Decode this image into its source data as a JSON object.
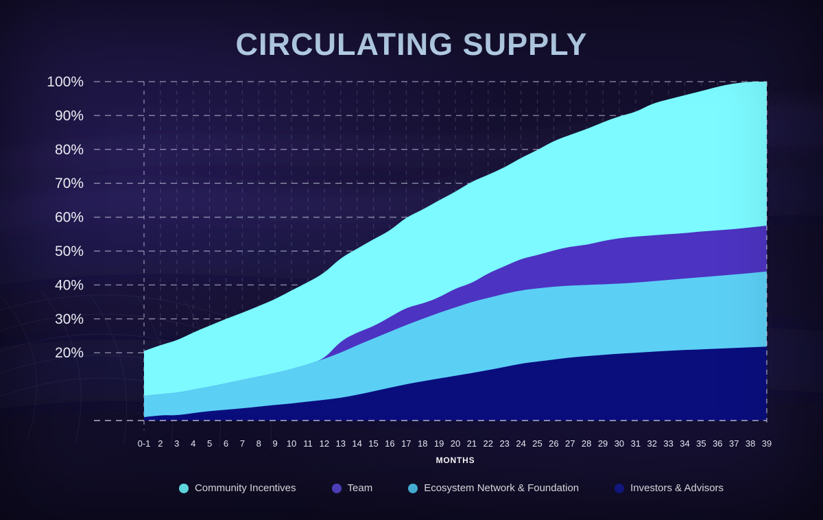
{
  "chart_data": {
    "type": "area",
    "stacked": true,
    "title": "CIRCULATING SUPPLY",
    "xlabel": "MONTHS",
    "ylabel": "",
    "unit": "%",
    "ylim": [
      0,
      100
    ],
    "grid": "dashed",
    "legend_position": "bottom",
    "x_categories": [
      "0-1",
      "2",
      "3",
      "4",
      "5",
      "6",
      "7",
      "8",
      "9",
      "10",
      "11",
      "12",
      "13",
      "14",
      "15",
      "16",
      "17",
      "18",
      "19",
      "20",
      "21",
      "22",
      "23",
      "24",
      "25",
      "26",
      "27",
      "28",
      "29",
      "30",
      "31",
      "32",
      "33",
      "34",
      "35",
      "36",
      "37",
      "38",
      "39"
    ],
    "y_ticks": [
      {
        "value": 100,
        "label": "100%"
      },
      {
        "value": 90,
        "label": "90%"
      },
      {
        "value": 80,
        "label": "80%"
      },
      {
        "value": 70,
        "label": "70%"
      },
      {
        "value": 60,
        "label": "60%"
      },
      {
        "value": 50,
        "label": "50%"
      },
      {
        "value": 40,
        "label": "40%"
      },
      {
        "value": 30,
        "label": "30%"
      },
      {
        "value": 20,
        "label": "20%"
      }
    ],
    "baseline_value": 0,
    "series": [
      {
        "name": "Investors & Advisors",
        "color": "#0a0e7d",
        "dot_color": "#151b91",
        "values": [
          1,
          1.6,
          1.5,
          2.2,
          2.8,
          3.2,
          3.6,
          4.1,
          4.6,
          5,
          5.6,
          6.1,
          6.7,
          7.6,
          8.6,
          9.7,
          10.7,
          11.6,
          12.4,
          13.2,
          14,
          14.9,
          15.8,
          16.8,
          17.4,
          18,
          18.6,
          19,
          19.4,
          19.7,
          20,
          20.3,
          20.6,
          20.8,
          21,
          21.2,
          21.4,
          21.6,
          21.8
        ]
      },
      {
        "name": "Ecosystem Network & Foundation",
        "color": "#5ccff5",
        "dot_color": "#4fc8f3",
        "values": [
          6.3,
          6.2,
          6.7,
          6.9,
          7.2,
          7.8,
          8.4,
          8.9,
          9.4,
          10.2,
          11,
          12.1,
          13.3,
          14.6,
          15.6,
          16.5,
          17.5,
          18.4,
          19.4,
          20.2,
          21,
          21.3,
          21.6,
          21.6,
          21.6,
          21.5,
          21.2,
          21,
          20.8,
          20.7,
          20.7,
          20.8,
          20.9,
          21.1,
          21.3,
          21.5,
          21.7,
          21.9,
          22.2
        ]
      },
      {
        "name": "Team",
        "color": "#4c33c1",
        "dot_color": "#5948d6",
        "values": [
          0,
          0,
          0,
          0,
          0,
          0,
          0,
          0,
          0,
          0,
          0,
          0,
          3.5,
          3.8,
          3.6,
          4.3,
          5.1,
          4.5,
          4.5,
          5.6,
          5.5,
          7.3,
          8.1,
          9.3,
          9.8,
          10.7,
          11.5,
          11.8,
          12.8,
          13.4,
          13.6,
          13.5,
          13.5,
          13.4,
          13.5,
          13.4,
          13.4,
          13.5,
          13.5
        ]
      },
      {
        "name": "Community Incentives",
        "color": "#7cfaff",
        "dot_color": "#6ef7ff",
        "values": [
          13.2,
          14.5,
          15.4,
          16.9,
          18,
          19,
          19.8,
          20.8,
          21.8,
          23.2,
          24.2,
          25.3,
          24.5,
          24.7,
          25.7,
          25.5,
          26.7,
          27.7,
          28.7,
          28.5,
          30,
          29,
          29.2,
          29.8,
          31,
          32.3,
          33,
          34.2,
          35,
          36,
          36.7,
          38.9,
          39.8,
          40.7,
          41.4,
          42.4,
          43,
          43,
          42.5
        ]
      }
    ],
    "legend": [
      {
        "label": "Community Incentives",
        "color": "#6ef7ff"
      },
      {
        "label": "Team",
        "color": "#5948d6"
      },
      {
        "label": "Ecosystem Network & Foundation",
        "color": "#4fc8f3"
      },
      {
        "label": "Investors & Advisors",
        "color": "#151b91"
      }
    ]
  },
  "colors": {
    "background": "#120e2a",
    "title_text": "#bdd8f3",
    "axis_text": "#f4f6fc",
    "gridline": "#dde1f8"
  }
}
